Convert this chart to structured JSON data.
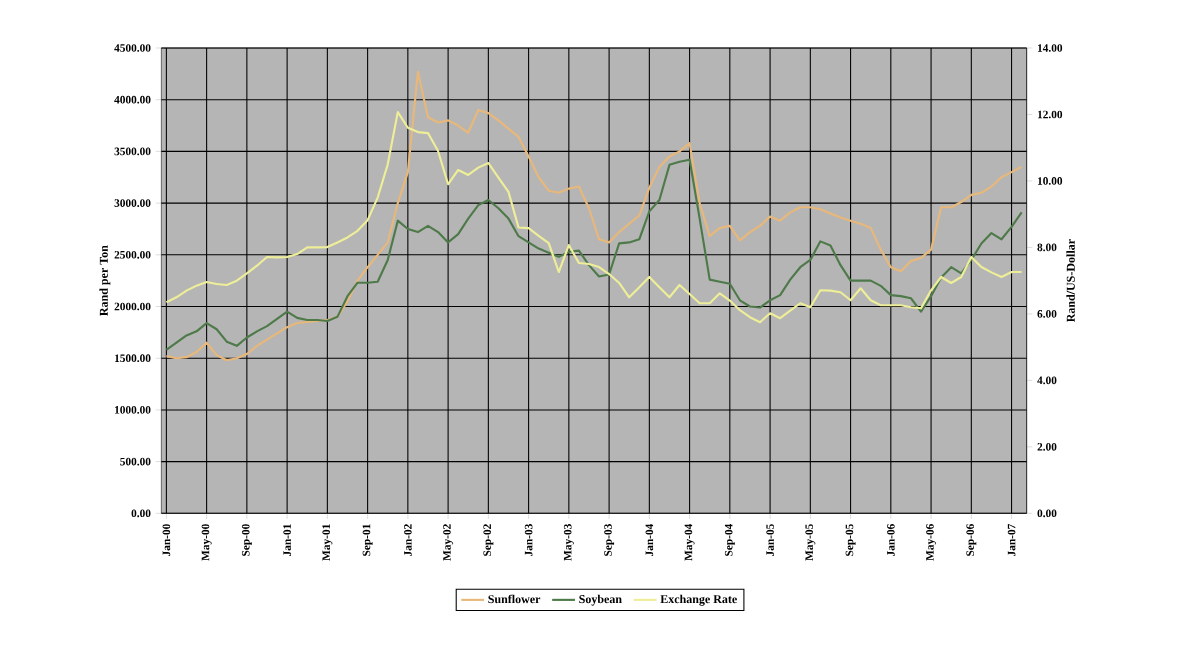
{
  "chart_data": {
    "type": "line",
    "ylabel": "Rand per Ton",
    "y2label": "Rand/US-Dollar",
    "categories": [
      "Jan-00",
      null,
      null,
      null,
      "May-00",
      null,
      null,
      null,
      "Sep-00",
      null,
      null,
      null,
      "Jan-01",
      null,
      null,
      null,
      "May-01",
      null,
      null,
      null,
      "Sep-01",
      null,
      null,
      null,
      "Jan-02",
      null,
      null,
      null,
      "May-02",
      null,
      null,
      null,
      "Sep-02",
      null,
      null,
      null,
      "Jan-03",
      null,
      null,
      null,
      "May-03",
      null,
      null,
      null,
      "Sep-03",
      null,
      null,
      null,
      "Jan-04",
      null,
      null,
      null,
      "May-04",
      null,
      null,
      null,
      "Sep-04",
      null,
      null,
      null,
      "Jan-05",
      null,
      null,
      null,
      "May-05",
      null,
      null,
      null,
      "Sep-05",
      null,
      null,
      null,
      "Jan-06",
      null,
      null,
      null,
      "May-06",
      null,
      null,
      null,
      "Sep-06",
      null,
      null,
      null,
      "Jan-07",
      null
    ],
    "series": [
      {
        "name": "Sunflower",
        "color": "#e8b87a",
        "values": [
          1520,
          1500,
          1510,
          1560,
          1650,
          1530,
          1480,
          1500,
          1540,
          1620,
          1680,
          1740,
          1800,
          1840,
          1850,
          1860,
          1870,
          1900,
          2050,
          2250,
          2380,
          2500,
          2620,
          3000,
          3300,
          4270,
          3830,
          3780,
          3800,
          3750,
          3680,
          3900,
          3870,
          3800,
          3720,
          3640,
          3450,
          3250,
          3120,
          3100,
          3140,
          3160,
          2950,
          2650,
          2620,
          2720,
          2800,
          2880,
          3150,
          3350,
          3450,
          3500,
          3580,
          3000,
          2680,
          2760,
          2780,
          2640,
          2720,
          2780,
          2870,
          2830,
          2910,
          2960,
          2960,
          2940,
          2900,
          2860,
          2830,
          2800,
          2760,
          2550,
          2380,
          2340,
          2440,
          2470,
          2550,
          2960,
          2960,
          3010,
          3080,
          3100,
          3160,
          3250,
          3300,
          3350
        ]
      },
      {
        "name": "Soybean",
        "color": "#4e7a4a",
        "values": [
          1580,
          1650,
          1720,
          1760,
          1840,
          1780,
          1660,
          1620,
          1700,
          1760,
          1810,
          1880,
          1950,
          1890,
          1870,
          1870,
          1860,
          1900,
          2100,
          2230,
          2230,
          2240,
          2450,
          2830,
          2750,
          2720,
          2780,
          2720,
          2620,
          2700,
          2850,
          2980,
          3030,
          2950,
          2850,
          2680,
          2620,
          2560,
          2520,
          2480,
          2530,
          2540,
          2400,
          2290,
          2310,
          2610,
          2620,
          2650,
          2920,
          3030,
          3370,
          3400,
          3420,
          2850,
          2260,
          2240,
          2220,
          2060,
          2000,
          1990,
          2060,
          2110,
          2260,
          2380,
          2450,
          2630,
          2590,
          2400,
          2250,
          2250,
          2250,
          2200,
          2110,
          2100,
          2080,
          1950,
          2100,
          2280,
          2380,
          2320,
          2450,
          2610,
          2710,
          2650,
          2770,
          2910
        ]
      },
      {
        "name": "Exchange Rate",
        "color": "#eeee99",
        "axis": "y2",
        "values": [
          6.35,
          6.5,
          6.7,
          6.85,
          6.96,
          6.9,
          6.87,
          7.0,
          7.22,
          7.45,
          7.71,
          7.7,
          7.71,
          7.8,
          8.0,
          8.0,
          8.01,
          8.15,
          8.3,
          8.5,
          8.82,
          9.5,
          10.5,
          12.07,
          11.6,
          11.47,
          11.44,
          10.9,
          9.9,
          10.33,
          10.18,
          10.4,
          10.54,
          10.1,
          9.67,
          8.6,
          8.58,
          8.35,
          8.13,
          7.26,
          8.07,
          7.53,
          7.5,
          7.41,
          7.2,
          6.93,
          6.5,
          6.8,
          7.11,
          6.8,
          6.5,
          6.87,
          6.6,
          6.32,
          6.32,
          6.62,
          6.4,
          6.11,
          5.9,
          5.75,
          6.02,
          5.87,
          6.1,
          6.32,
          6.2,
          6.71,
          6.7,
          6.65,
          6.41,
          6.77,
          6.41,
          6.26,
          6.26,
          6.26,
          6.2,
          6.17,
          6.71,
          7.11,
          6.93,
          7.11,
          7.71,
          7.41,
          7.25,
          7.11,
          7.26,
          7.26
        ]
      }
    ],
    "ylim": [
      0,
      4500
    ],
    "yticks": [
      {
        "value": 0,
        "label": "0.00"
      },
      {
        "value": 500,
        "label": "500.00"
      },
      {
        "value": 1000,
        "label": "1000.00"
      },
      {
        "value": 1500,
        "label": "1500.00"
      },
      {
        "value": 2000,
        "label": "2000.00"
      },
      {
        "value": 2500,
        "label": "2500.00"
      },
      {
        "value": 3000,
        "label": "3000.00"
      },
      {
        "value": 3500,
        "label": "3500.00"
      },
      {
        "value": 4000,
        "label": "4000.00"
      },
      {
        "value": 4500,
        "label": "4500.00"
      }
    ],
    "y2lim": [
      0,
      14
    ],
    "y2ticks": [
      {
        "value": 0,
        "label": "0.00"
      },
      {
        "value": 2,
        "label": "2.00"
      },
      {
        "value": 4,
        "label": "4.00"
      },
      {
        "value": 6,
        "label": "6.00"
      },
      {
        "value": 8,
        "label": "8.00"
      },
      {
        "value": 10,
        "label": "10.00"
      },
      {
        "value": 12,
        "label": "12.00"
      },
      {
        "value": 14,
        "label": "14.00"
      }
    ],
    "grid": true,
    "legend": "bottom"
  }
}
